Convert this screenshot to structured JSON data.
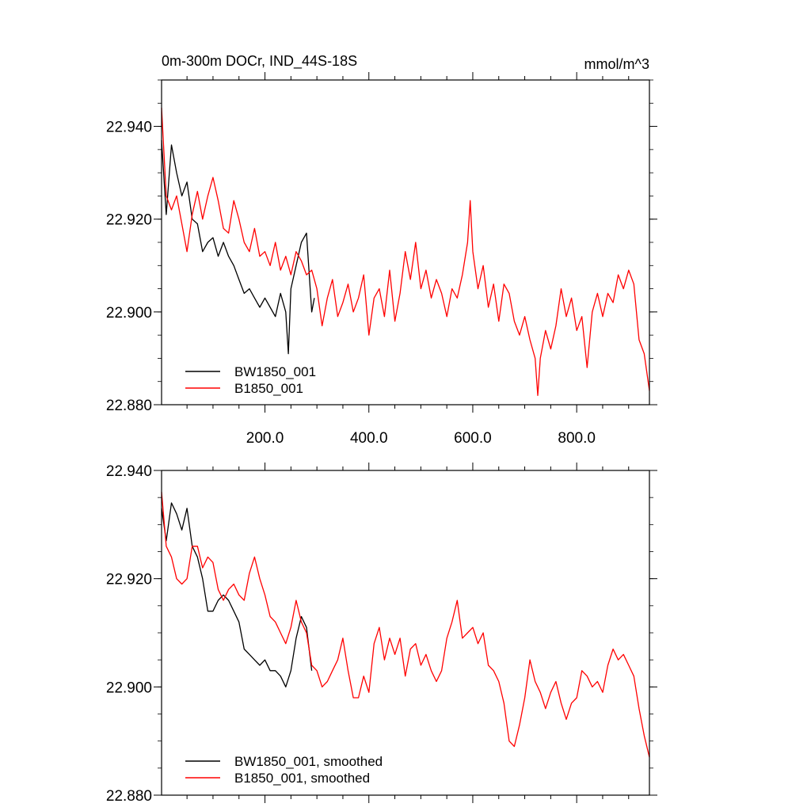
{
  "chart_data": [
    {
      "type": "line",
      "title": "0m-300m DOCr, IND_44S-18S",
      "units": "mmol/m^3",
      "xlim": [
        1,
        940
      ],
      "ylim": [
        22.88,
        22.95
      ],
      "xticks": [
        200,
        400,
        600,
        800
      ],
      "xtick_labels": [
        "200.0",
        "400.0",
        "600.0",
        "800.0"
      ],
      "yticks": [
        22.88,
        22.9,
        22.92,
        22.94
      ],
      "ytick_labels": [
        "22.880",
        "22.900",
        "22.920",
        "22.940"
      ],
      "legend_position": "bottom-left",
      "series": [
        {
          "name": "BW1850_001",
          "color": "#000000",
          "points": [
            [
              1,
              22.937
            ],
            [
              10,
              22.921
            ],
            [
              20,
              22.936
            ],
            [
              30,
              22.93
            ],
            [
              40,
              22.925
            ],
            [
              50,
              22.928
            ],
            [
              60,
              22.92
            ],
            [
              70,
              22.919
            ],
            [
              80,
              22.913
            ],
            [
              90,
              22.915
            ],
            [
              100,
              22.916
            ],
            [
              110,
              22.912
            ],
            [
              120,
              22.915
            ],
            [
              130,
              22.912
            ],
            [
              140,
              22.91
            ],
            [
              150,
              22.907
            ],
            [
              160,
              22.904
            ],
            [
              170,
              22.905
            ],
            [
              180,
              22.903
            ],
            [
              190,
              22.901
            ],
            [
              200,
              22.903
            ],
            [
              210,
              22.901
            ],
            [
              220,
              22.899
            ],
            [
              230,
              22.904
            ],
            [
              240,
              22.9
            ],
            [
              245,
              22.891
            ],
            [
              250,
              22.905
            ],
            [
              260,
              22.91
            ],
            [
              270,
              22.915
            ],
            [
              280,
              22.917
            ],
            [
              290,
              22.9
            ],
            [
              295,
              22.903
            ]
          ]
        },
        {
          "name": "B1850_001",
          "color": "#ff0000",
          "points": [
            [
              1,
              22.944
            ],
            [
              10,
              22.925
            ],
            [
              20,
              22.922
            ],
            [
              30,
              22.925
            ],
            [
              40,
              22.919
            ],
            [
              50,
              22.913
            ],
            [
              60,
              22.921
            ],
            [
              70,
              22.926
            ],
            [
              80,
              22.92
            ],
            [
              90,
              22.925
            ],
            [
              100,
              22.929
            ],
            [
              110,
              22.924
            ],
            [
              120,
              22.918
            ],
            [
              130,
              22.917
            ],
            [
              140,
              22.924
            ],
            [
              150,
              22.92
            ],
            [
              160,
              22.915
            ],
            [
              170,
              22.913
            ],
            [
              180,
              22.918
            ],
            [
              190,
              22.912
            ],
            [
              200,
              22.913
            ],
            [
              210,
              22.91
            ],
            [
              220,
              22.915
            ],
            [
              230,
              22.909
            ],
            [
              240,
              22.912
            ],
            [
              250,
              22.908
            ],
            [
              260,
              22.913
            ],
            [
              270,
              22.911
            ],
            [
              280,
              22.908
            ],
            [
              290,
              22.909
            ],
            [
              300,
              22.905
            ],
            [
              310,
              22.897
            ],
            [
              320,
              22.903
            ],
            [
              330,
              22.907
            ],
            [
              340,
              22.899
            ],
            [
              350,
              22.902
            ],
            [
              360,
              22.906
            ],
            [
              370,
              22.9
            ],
            [
              380,
              22.903
            ],
            [
              390,
              22.908
            ],
            [
              400,
              22.895
            ],
            [
              410,
              22.903
            ],
            [
              420,
              22.905
            ],
            [
              430,
              22.899
            ],
            [
              440,
              22.909
            ],
            [
              450,
              22.898
            ],
            [
              460,
              22.904
            ],
            [
              470,
              22.913
            ],
            [
              480,
              22.907
            ],
            [
              490,
              22.915
            ],
            [
              500,
              22.905
            ],
            [
              510,
              22.909
            ],
            [
              520,
              22.903
            ],
            [
              530,
              22.907
            ],
            [
              540,
              22.904
            ],
            [
              550,
              22.899
            ],
            [
              560,
              22.905
            ],
            [
              570,
              22.903
            ],
            [
              580,
              22.908
            ],
            [
              590,
              22.915
            ],
            [
              595,
              22.924
            ],
            [
              600,
              22.913
            ],
            [
              610,
              22.905
            ],
            [
              620,
              22.91
            ],
            [
              630,
              22.901
            ],
            [
              640,
              22.906
            ],
            [
              650,
              22.898
            ],
            [
              660,
              22.906
            ],
            [
              670,
              22.904
            ],
            [
              680,
              22.898
            ],
            [
              690,
              22.895
            ],
            [
              700,
              22.899
            ],
            [
              710,
              22.894
            ],
            [
              720,
              22.89
            ],
            [
              725,
              22.882
            ],
            [
              730,
              22.89
            ],
            [
              740,
              22.896
            ],
            [
              750,
              22.892
            ],
            [
              760,
              22.897
            ],
            [
              770,
              22.905
            ],
            [
              780,
              22.899
            ],
            [
              790,
              22.903
            ],
            [
              800,
              22.896
            ],
            [
              810,
              22.899
            ],
            [
              820,
              22.888
            ],
            [
              830,
              22.9
            ],
            [
              840,
              22.904
            ],
            [
              850,
              22.899
            ],
            [
              860,
              22.904
            ],
            [
              870,
              22.902
            ],
            [
              880,
              22.908
            ],
            [
              890,
              22.905
            ],
            [
              900,
              22.909
            ],
            [
              910,
              22.906
            ],
            [
              920,
              22.894
            ],
            [
              930,
              22.891
            ],
            [
              940,
              22.883
            ]
          ]
        }
      ]
    },
    {
      "type": "line",
      "xlim": [
        1,
        940
      ],
      "ylim": [
        22.88,
        22.94
      ],
      "yticks": [
        22.88,
        22.9,
        22.92,
        22.94
      ],
      "ytick_labels": [
        "22.880",
        "22.900",
        "22.920",
        "22.940"
      ],
      "legend_position": "bottom-left",
      "series": [
        {
          "name": "BW1850_001, smoothed",
          "color": "#000000",
          "points": [
            [
              1,
              22.933
            ],
            [
              10,
              22.927
            ],
            [
              20,
              22.934
            ],
            [
              30,
              22.932
            ],
            [
              40,
              22.929
            ],
            [
              50,
              22.933
            ],
            [
              60,
              22.926
            ],
            [
              70,
              22.924
            ],
            [
              80,
              22.92
            ],
            [
              90,
              22.914
            ],
            [
              100,
              22.914
            ],
            [
              110,
              22.916
            ],
            [
              120,
              22.917
            ],
            [
              130,
              22.916
            ],
            [
              140,
              22.914
            ],
            [
              150,
              22.912
            ],
            [
              160,
              22.907
            ],
            [
              170,
              22.906
            ],
            [
              180,
              22.905
            ],
            [
              190,
              22.904
            ],
            [
              200,
              22.905
            ],
            [
              210,
              22.903
            ],
            [
              220,
              22.903
            ],
            [
              230,
              22.902
            ],
            [
              240,
              22.9
            ],
            [
              250,
              22.903
            ],
            [
              260,
              22.909
            ],
            [
              270,
              22.913
            ],
            [
              280,
              22.911
            ],
            [
              290,
              22.903
            ]
          ]
        },
        {
          "name": "B1850_001, smoothed",
          "color": "#ff0000",
          "points": [
            [
              1,
              22.936
            ],
            [
              10,
              22.926
            ],
            [
              20,
              22.924
            ],
            [
              30,
              22.92
            ],
            [
              40,
              22.919
            ],
            [
              50,
              22.92
            ],
            [
              60,
              22.926
            ],
            [
              70,
              22.926
            ],
            [
              80,
              22.922
            ],
            [
              90,
              22.924
            ],
            [
              100,
              22.923
            ],
            [
              110,
              22.918
            ],
            [
              120,
              22.916
            ],
            [
              130,
              22.918
            ],
            [
              140,
              22.919
            ],
            [
              150,
              22.917
            ],
            [
              160,
              22.916
            ],
            [
              170,
              22.921
            ],
            [
              180,
              22.924
            ],
            [
              190,
              22.92
            ],
            [
              200,
              22.917
            ],
            [
              210,
              22.913
            ],
            [
              220,
              22.912
            ],
            [
              230,
              22.91
            ],
            [
              240,
              22.908
            ],
            [
              250,
              22.911
            ],
            [
              260,
              22.916
            ],
            [
              270,
              22.912
            ],
            [
              280,
              22.91
            ],
            [
              290,
              22.904
            ],
            [
              300,
              22.903
            ],
            [
              310,
              22.9
            ],
            [
              320,
              22.901
            ],
            [
              330,
              22.903
            ],
            [
              340,
              22.905
            ],
            [
              350,
              22.909
            ],
            [
              360,
              22.903
            ],
            [
              370,
              22.898
            ],
            [
              380,
              22.898
            ],
            [
              390,
              22.902
            ],
            [
              400,
              22.899
            ],
            [
              410,
              22.908
            ],
            [
              420,
              22.911
            ],
            [
              430,
              22.905
            ],
            [
              440,
              22.909
            ],
            [
              450,
              22.906
            ],
            [
              460,
              22.909
            ],
            [
              470,
              22.902
            ],
            [
              480,
              22.907
            ],
            [
              490,
              22.908
            ],
            [
              500,
              22.904
            ],
            [
              510,
              22.906
            ],
            [
              520,
              22.903
            ],
            [
              530,
              22.901
            ],
            [
              540,
              22.903
            ],
            [
              550,
              22.909
            ],
            [
              560,
              22.912
            ],
            [
              570,
              22.916
            ],
            [
              580,
              22.909
            ],
            [
              590,
              22.91
            ],
            [
              600,
              22.911
            ],
            [
              610,
              22.908
            ],
            [
              620,
              22.91
            ],
            [
              630,
              22.904
            ],
            [
              640,
              22.903
            ],
            [
              650,
              22.901
            ],
            [
              660,
              22.897
            ],
            [
              670,
              22.89
            ],
            [
              680,
              22.889
            ],
            [
              690,
              22.893
            ],
            [
              700,
              22.898
            ],
            [
              710,
              22.905
            ],
            [
              720,
              22.901
            ],
            [
              730,
              22.899
            ],
            [
              740,
              22.896
            ],
            [
              750,
              22.899
            ],
            [
              760,
              22.901
            ],
            [
              770,
              22.897
            ],
            [
              780,
              22.894
            ],
            [
              790,
              22.897
            ],
            [
              800,
              22.898
            ],
            [
              810,
              22.903
            ],
            [
              820,
              22.902
            ],
            [
              830,
              22.9
            ],
            [
              840,
              22.901
            ],
            [
              850,
              22.899
            ],
            [
              860,
              22.904
            ],
            [
              870,
              22.907
            ],
            [
              880,
              22.905
            ],
            [
              890,
              22.906
            ],
            [
              900,
              22.904
            ],
            [
              910,
              22.902
            ],
            [
              920,
              22.896
            ],
            [
              930,
              22.891
            ],
            [
              940,
              22.887
            ]
          ]
        }
      ]
    }
  ]
}
